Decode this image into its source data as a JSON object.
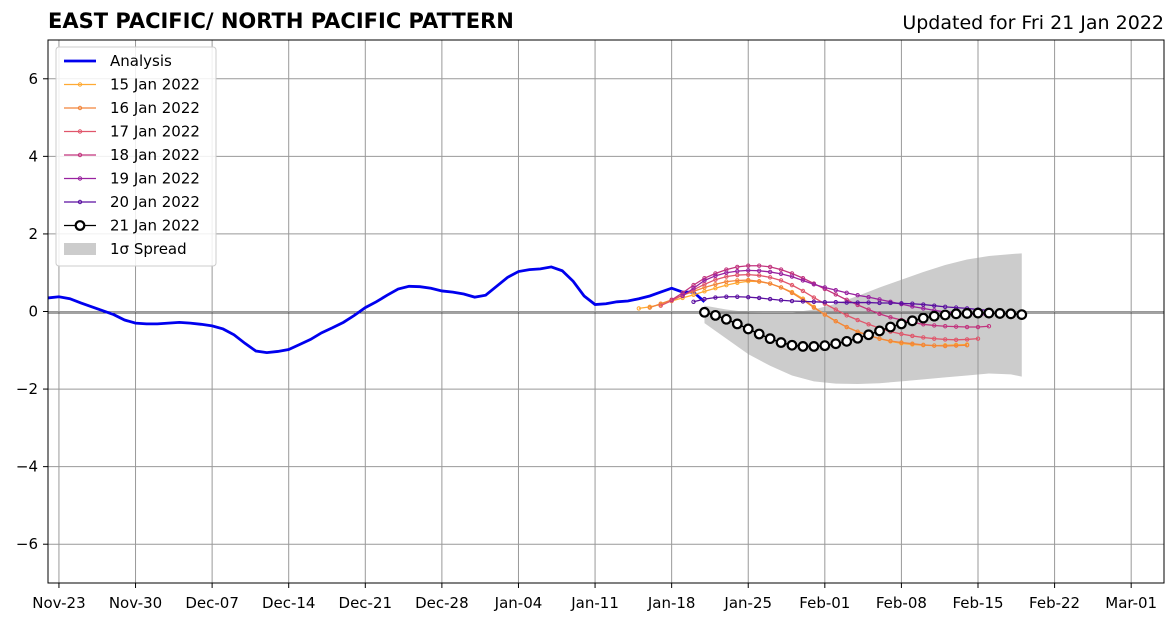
{
  "chart_data": {
    "type": "line",
    "title": "EAST PACIFIC/ NORTH PACIFIC PATTERN",
    "subtitle": "Updated for Fri 21 Jan 2022",
    "xlabel": "",
    "ylabel": "",
    "x_unit": "days since Nov-23 (2021)",
    "xlim": [
      -1,
      101
    ],
    "ylim": [
      -7,
      7
    ],
    "yticks": [
      -6,
      -4,
      -2,
      0,
      2,
      4,
      6
    ],
    "ytick_labels": [
      "−6",
      "−4",
      "−2",
      "0",
      "2",
      "4",
      "6"
    ],
    "xticks": [
      0,
      7,
      14,
      21,
      28,
      35,
      42,
      49,
      56,
      63,
      70,
      77,
      84,
      91,
      98
    ],
    "xtick_labels": [
      "Nov-23",
      "Nov-30",
      "Dec-07",
      "Dec-14",
      "Dec-21",
      "Dec-28",
      "Jan-04",
      "Jan-11",
      "Jan-18",
      "Jan-25",
      "Feb-01",
      "Feb-08",
      "Feb-15",
      "Feb-22",
      "Mar-01"
    ],
    "grid": true,
    "legend_position": "top-left",
    "series": [
      {
        "name": "Analysis",
        "color": "#0000ee",
        "style": "thick",
        "x": [
          -1,
          0,
          1,
          2,
          3,
          4,
          5,
          6,
          7,
          8,
          9,
          10,
          11,
          12,
          13,
          14,
          15,
          16,
          17,
          18,
          19,
          20,
          21,
          22,
          23,
          24,
          25,
          26,
          27,
          28,
          29,
          30,
          31,
          32,
          33,
          34,
          35,
          36,
          37,
          38,
          39,
          40,
          41,
          42,
          43,
          44,
          45,
          46,
          47,
          48,
          49,
          50,
          51,
          52,
          53,
          54,
          55,
          56,
          57,
          58,
          59
        ],
        "y": [
          0.35,
          0.38,
          0.33,
          0.22,
          0.12,
          0.02,
          -0.08,
          -0.22,
          -0.3,
          -0.32,
          -0.32,
          -0.3,
          -0.28,
          -0.3,
          -0.33,
          -0.37,
          -0.45,
          -0.6,
          -0.82,
          -1.02,
          -1.06,
          -1.03,
          -0.98,
          -0.85,
          -0.72,
          -0.55,
          -0.42,
          -0.28,
          -0.1,
          0.1,
          0.25,
          0.42,
          0.58,
          0.65,
          0.64,
          0.6,
          0.53,
          0.5,
          0.45,
          0.37,
          0.42,
          0.65,
          0.88,
          1.03,
          1.08,
          1.1,
          1.15,
          1.05,
          0.78,
          0.4,
          0.18,
          0.2,
          0.25,
          0.27,
          0.33,
          0.4,
          0.5,
          0.6,
          0.5,
          0.5,
          0.25
        ]
      },
      {
        "name": "15 Jan 2022",
        "color": "#ffaa33",
        "style": "dots",
        "x": [
          53,
          54,
          55,
          56,
          57,
          58,
          59,
          60,
          61,
          62,
          63,
          64,
          65,
          66,
          67,
          68,
          69,
          70,
          71,
          72,
          73,
          74,
          75,
          76,
          77,
          78,
          79,
          80,
          81,
          82,
          83
        ],
        "y": [
          0.08,
          0.12,
          0.18,
          0.27,
          0.35,
          0.43,
          0.52,
          0.6,
          0.68,
          0.74,
          0.78,
          0.77,
          0.72,
          0.62,
          0.5,
          0.33,
          0.12,
          -0.08,
          -0.25,
          -0.4,
          -0.52,
          -0.62,
          -0.7,
          -0.77,
          -0.82,
          -0.85,
          -0.87,
          -0.88,
          -0.87,
          -0.86,
          -0.85
        ]
      },
      {
        "name": "16 Jan 2022",
        "color": "#f2853a",
        "style": "dots",
        "x": [
          54,
          55,
          56,
          57,
          58,
          59,
          60,
          61,
          62,
          63,
          64,
          65,
          66,
          67,
          68,
          69,
          70,
          71,
          72,
          73,
          74,
          75,
          76,
          77,
          78,
          79,
          80,
          81,
          82,
          83
        ],
        "y": [
          0.1,
          0.2,
          0.3,
          0.42,
          0.52,
          0.62,
          0.7,
          0.77,
          0.8,
          0.81,
          0.78,
          0.72,
          0.62,
          0.48,
          0.3,
          0.1,
          -0.08,
          -0.25,
          -0.4,
          -0.52,
          -0.62,
          -0.7,
          -0.76,
          -0.8,
          -0.83,
          -0.86,
          -0.88,
          -0.89,
          -0.88,
          -0.87
        ]
      },
      {
        "name": "17 Jan 2022",
        "color": "#e0566b",
        "style": "dots",
        "x": [
          55,
          56,
          57,
          58,
          59,
          60,
          61,
          62,
          63,
          64,
          65,
          66,
          67,
          68,
          69,
          70,
          71,
          72,
          73,
          74,
          75,
          76,
          77,
          78,
          79,
          80,
          81,
          82,
          83,
          84
        ],
        "y": [
          0.15,
          0.28,
          0.42,
          0.56,
          0.7,
          0.82,
          0.9,
          0.94,
          0.95,
          0.93,
          0.88,
          0.8,
          0.68,
          0.53,
          0.36,
          0.2,
          0.05,
          -0.1,
          -0.22,
          -0.33,
          -0.43,
          -0.52,
          -0.58,
          -0.63,
          -0.67,
          -0.7,
          -0.72,
          -0.73,
          -0.72,
          -0.7
        ]
      },
      {
        "name": "18 Jan 2022",
        "color": "#c2347e",
        "style": "dots",
        "x": [
          56,
          57,
          58,
          59,
          60,
          61,
          62,
          63,
          64,
          65,
          66,
          67,
          68,
          69,
          70,
          71,
          72,
          73,
          74,
          75,
          76,
          77,
          78,
          79,
          80,
          81,
          82,
          83,
          84,
          85
        ],
        "y": [
          0.3,
          0.48,
          0.68,
          0.86,
          0.98,
          1.08,
          1.15,
          1.18,
          1.18,
          1.15,
          1.08,
          0.98,
          0.86,
          0.72,
          0.58,
          0.44,
          0.3,
          0.17,
          0.05,
          -0.06,
          -0.15,
          -0.22,
          -0.28,
          -0.33,
          -0.36,
          -0.38,
          -0.39,
          -0.4,
          -0.4,
          -0.38
        ]
      },
      {
        "name": "19 Jan 2022",
        "color": "#9922a0",
        "style": "dots",
        "x": [
          57,
          58,
          59,
          60,
          61,
          62,
          63,
          64,
          65,
          66,
          67,
          68,
          69,
          70,
          71,
          72,
          73,
          74,
          75,
          76,
          77,
          78,
          79,
          80,
          81,
          82,
          83,
          84,
          85
        ],
        "y": [
          0.4,
          0.6,
          0.8,
          0.92,
          1.0,
          1.04,
          1.06,
          1.05,
          1.02,
          0.97,
          0.9,
          0.8,
          0.7,
          0.62,
          0.55,
          0.48,
          0.42,
          0.37,
          0.31,
          0.25,
          0.19,
          0.13,
          0.08,
          0.03,
          -0.01,
          -0.04,
          -0.06,
          -0.08,
          -0.09
        ]
      },
      {
        "name": "20 Jan 2022",
        "color": "#5a0fa0",
        "style": "dots",
        "x": [
          58,
          59,
          60,
          61,
          62,
          63,
          64,
          65,
          66,
          67,
          68,
          69,
          70,
          71,
          72,
          73,
          74,
          75,
          76,
          77,
          78,
          79,
          80,
          81,
          82,
          83,
          84,
          85
        ],
        "y": [
          0.25,
          0.32,
          0.36,
          0.38,
          0.38,
          0.37,
          0.35,
          0.32,
          0.29,
          0.27,
          0.26,
          0.25,
          0.24,
          0.24,
          0.23,
          0.23,
          0.23,
          0.22,
          0.22,
          0.21,
          0.2,
          0.18,
          0.15,
          0.12,
          0.1,
          0.08,
          0.05,
          0.03
        ]
      },
      {
        "name": "21 Jan 2022",
        "color": "#000000",
        "style": "circles",
        "x": [
          59,
          60,
          61,
          62,
          63,
          64,
          65,
          66,
          67,
          68,
          69,
          70,
          71,
          72,
          73,
          74,
          75,
          76,
          77,
          78,
          79,
          80,
          81,
          82,
          83,
          84,
          85,
          86,
          87,
          88
        ],
        "y": [
          -0.02,
          -0.1,
          -0.2,
          -0.32,
          -0.45,
          -0.58,
          -0.7,
          -0.8,
          -0.87,
          -0.9,
          -0.9,
          -0.88,
          -0.83,
          -0.77,
          -0.69,
          -0.6,
          -0.5,
          -0.4,
          -0.32,
          -0.24,
          -0.17,
          -0.12,
          -0.09,
          -0.06,
          -0.05,
          -0.04,
          -0.04,
          -0.05,
          -0.06,
          -0.08
        ]
      }
    ],
    "spread": {
      "name": "1σ Spread",
      "color": "#cccccc",
      "x": [
        59,
        61,
        63,
        65,
        67,
        69,
        71,
        73,
        75,
        77,
        79,
        81,
        83,
        85,
        87,
        88
      ],
      "upper": [
        0.15,
        0.05,
        -0.02,
        -0.03,
        -0.03,
        0.05,
        0.2,
        0.4,
        0.62,
        0.82,
        1.02,
        1.2,
        1.34,
        1.43,
        1.48,
        1.5
      ],
      "lower": [
        -0.3,
        -0.7,
        -1.1,
        -1.4,
        -1.65,
        -1.8,
        -1.86,
        -1.87,
        -1.85,
        -1.8,
        -1.75,
        -1.7,
        -1.65,
        -1.6,
        -1.62,
        -1.68
      ]
    }
  }
}
